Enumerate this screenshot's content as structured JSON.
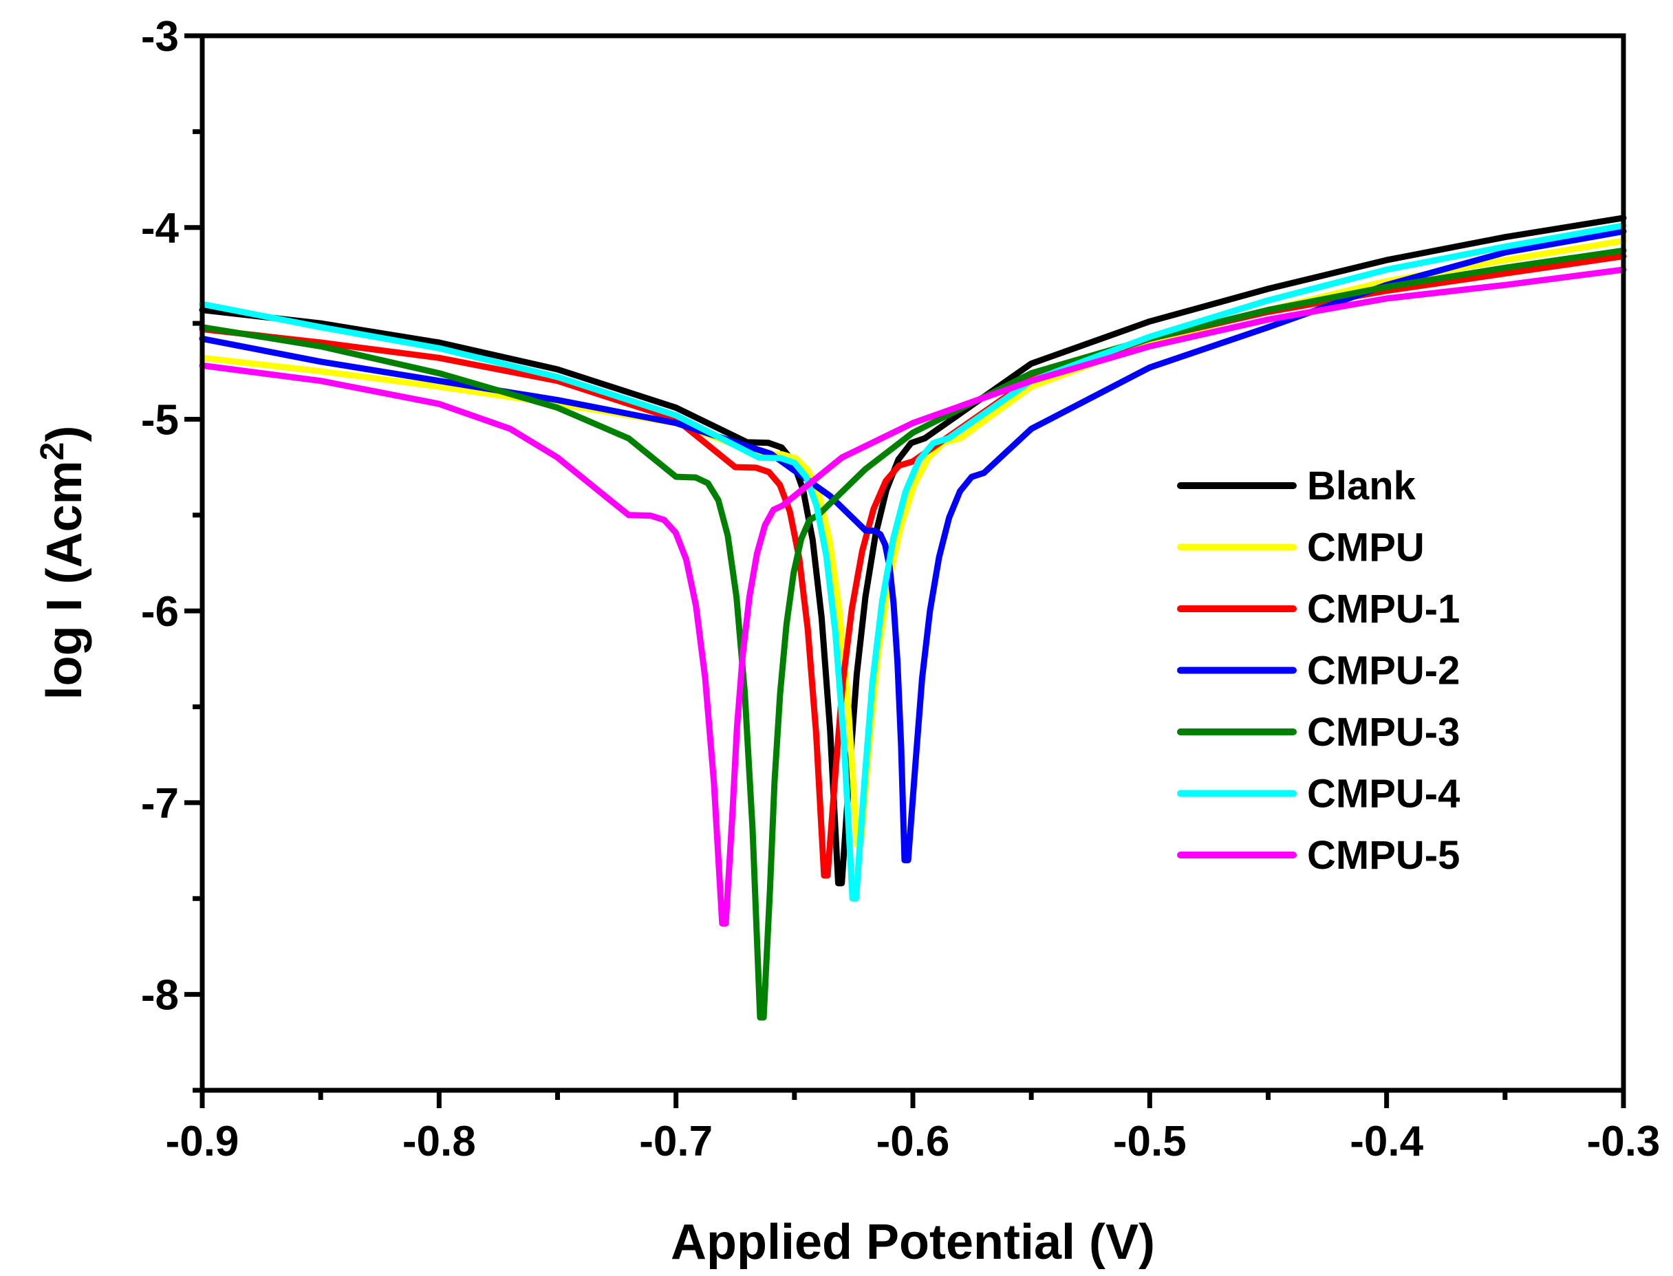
{
  "chart_data": {
    "type": "line",
    "xlabel": "Applied Potential (V)",
    "ylabel": {
      "main": "log I (Acm",
      "sup": "2",
      "close": ")"
    },
    "xlim": [
      -0.9,
      -0.3
    ],
    "ylim": [
      -8.5,
      -3
    ],
    "xticks": [
      -0.9,
      -0.8,
      -0.7,
      -0.6,
      -0.5,
      -0.4,
      -0.3
    ],
    "xtick_labels": [
      "-0.9",
      "-0.8",
      "-0.7",
      "-0.6",
      "-0.5",
      "-0.4",
      "-0.3"
    ],
    "yticks": [
      -3,
      -4,
      -5,
      -6,
      -7,
      -8
    ],
    "ytick_labels": [
      "-3",
      "-4",
      "-5",
      "-6",
      "-7",
      "-8"
    ],
    "legend_position": "right-middle",
    "series": [
      {
        "name": "Blank",
        "color": "#000000",
        "ecorr": -0.63,
        "min": -7.42,
        "cathodic": [
          [
            -0.9,
            -4.43
          ],
          [
            -0.85,
            -4.5
          ],
          [
            -0.8,
            -4.6
          ],
          [
            -0.75,
            -4.74
          ],
          [
            -0.7,
            -4.94
          ],
          [
            -0.67,
            -5.12
          ]
        ],
        "anodic": [
          [
            -0.595,
            -5.1
          ],
          [
            -0.55,
            -4.71
          ],
          [
            -0.5,
            -4.49
          ],
          [
            -0.45,
            -4.32
          ],
          [
            -0.4,
            -4.17
          ],
          [
            -0.35,
            -4.05
          ],
          [
            -0.3,
            -3.95
          ]
        ]
      },
      {
        "name": "CMPU",
        "color": "#ffff00",
        "ecorr": -0.622,
        "min": -7.22,
        "cathodic": [
          [
            -0.9,
            -4.68
          ],
          [
            -0.85,
            -4.75
          ],
          [
            -0.8,
            -4.83
          ],
          [
            -0.75,
            -4.92
          ],
          [
            -0.7,
            -5.02
          ],
          [
            -0.665,
            -5.18
          ]
        ],
        "anodic": [
          [
            -0.58,
            -5.1
          ],
          [
            -0.55,
            -4.83
          ],
          [
            -0.5,
            -4.6
          ],
          [
            -0.45,
            -4.43
          ],
          [
            -0.4,
            -4.28
          ],
          [
            -0.35,
            -4.17
          ],
          [
            -0.3,
            -4.07
          ]
        ]
      },
      {
        "name": "CMPU-1",
        "color": "#ff0000",
        "ecorr": -0.636,
        "min": -7.38,
        "cathodic": [
          [
            -0.9,
            -4.53
          ],
          [
            -0.85,
            -4.6
          ],
          [
            -0.8,
            -4.68
          ],
          [
            -0.75,
            -4.8
          ],
          [
            -0.7,
            -5.0
          ],
          [
            -0.675,
            -5.25
          ]
        ],
        "anodic": [
          [
            -0.6,
            -5.22
          ],
          [
            -0.55,
            -4.79
          ],
          [
            -0.5,
            -4.58
          ],
          [
            -0.45,
            -4.44
          ],
          [
            -0.4,
            -4.33
          ],
          [
            -0.35,
            -4.24
          ],
          [
            -0.3,
            -4.15
          ]
        ]
      },
      {
        "name": "CMPU-2",
        "color": "#0000ff",
        "ecorr": -0.602,
        "min": -7.3,
        "cathodic": [
          [
            -0.9,
            -4.58
          ],
          [
            -0.85,
            -4.7
          ],
          [
            -0.8,
            -4.8
          ],
          [
            -0.75,
            -4.9
          ],
          [
            -0.7,
            -5.02
          ],
          [
            -0.66,
            -5.18
          ],
          [
            -0.635,
            -5.4
          ],
          [
            -0.62,
            -5.58
          ]
        ],
        "anodic": [
          [
            -0.57,
            -5.28
          ],
          [
            -0.55,
            -5.05
          ],
          [
            -0.5,
            -4.73
          ],
          [
            -0.45,
            -4.52
          ],
          [
            -0.4,
            -4.3
          ],
          [
            -0.35,
            -4.13
          ],
          [
            -0.3,
            -4.02
          ]
        ]
      },
      {
        "name": "CMPU-3",
        "color": "#008000",
        "ecorr": -0.663,
        "min": -8.12,
        "cathodic": [
          [
            -0.9,
            -4.52
          ],
          [
            -0.85,
            -4.62
          ],
          [
            -0.8,
            -4.76
          ],
          [
            -0.75,
            -4.94
          ],
          [
            -0.72,
            -5.1
          ],
          [
            -0.7,
            -5.3
          ]
        ],
        "anodic": [
          [
            -0.64,
            -5.5
          ],
          [
            -0.62,
            -5.26
          ],
          [
            -0.6,
            -5.07
          ],
          [
            -0.55,
            -4.76
          ],
          [
            -0.5,
            -4.58
          ],
          [
            -0.45,
            -4.43
          ],
          [
            -0.4,
            -4.31
          ],
          [
            -0.35,
            -4.21
          ],
          [
            -0.3,
            -4.12
          ]
        ]
      },
      {
        "name": "CMPU-4",
        "color": "#00ffff",
        "ecorr": -0.624,
        "min": -7.5,
        "cathodic": [
          [
            -0.9,
            -4.4
          ],
          [
            -0.85,
            -4.52
          ],
          [
            -0.8,
            -4.63
          ],
          [
            -0.75,
            -4.78
          ],
          [
            -0.7,
            -4.98
          ],
          [
            -0.665,
            -5.2
          ]
        ],
        "anodic": [
          [
            -0.585,
            -5.1
          ],
          [
            -0.55,
            -4.8
          ],
          [
            -0.5,
            -4.57
          ],
          [
            -0.45,
            -4.38
          ],
          [
            -0.4,
            -4.22
          ],
          [
            -0.35,
            -4.1
          ],
          [
            -0.3,
            -3.99
          ]
        ]
      },
      {
        "name": "CMPU-5",
        "color": "#ff00ff",
        "ecorr": -0.679,
        "min": -7.63,
        "cathodic": [
          [
            -0.9,
            -4.72
          ],
          [
            -0.85,
            -4.8
          ],
          [
            -0.8,
            -4.92
          ],
          [
            -0.77,
            -5.05
          ],
          [
            -0.75,
            -5.2
          ],
          [
            -0.72,
            -5.5
          ]
        ],
        "anodic": [
          [
            -0.655,
            -5.45
          ],
          [
            -0.63,
            -5.2
          ],
          [
            -0.6,
            -5.02
          ],
          [
            -0.55,
            -4.8
          ],
          [
            -0.5,
            -4.62
          ],
          [
            -0.45,
            -4.48
          ],
          [
            -0.4,
            -4.37
          ],
          [
            -0.35,
            -4.3
          ],
          [
            -0.3,
            -4.22
          ]
        ]
      }
    ]
  }
}
